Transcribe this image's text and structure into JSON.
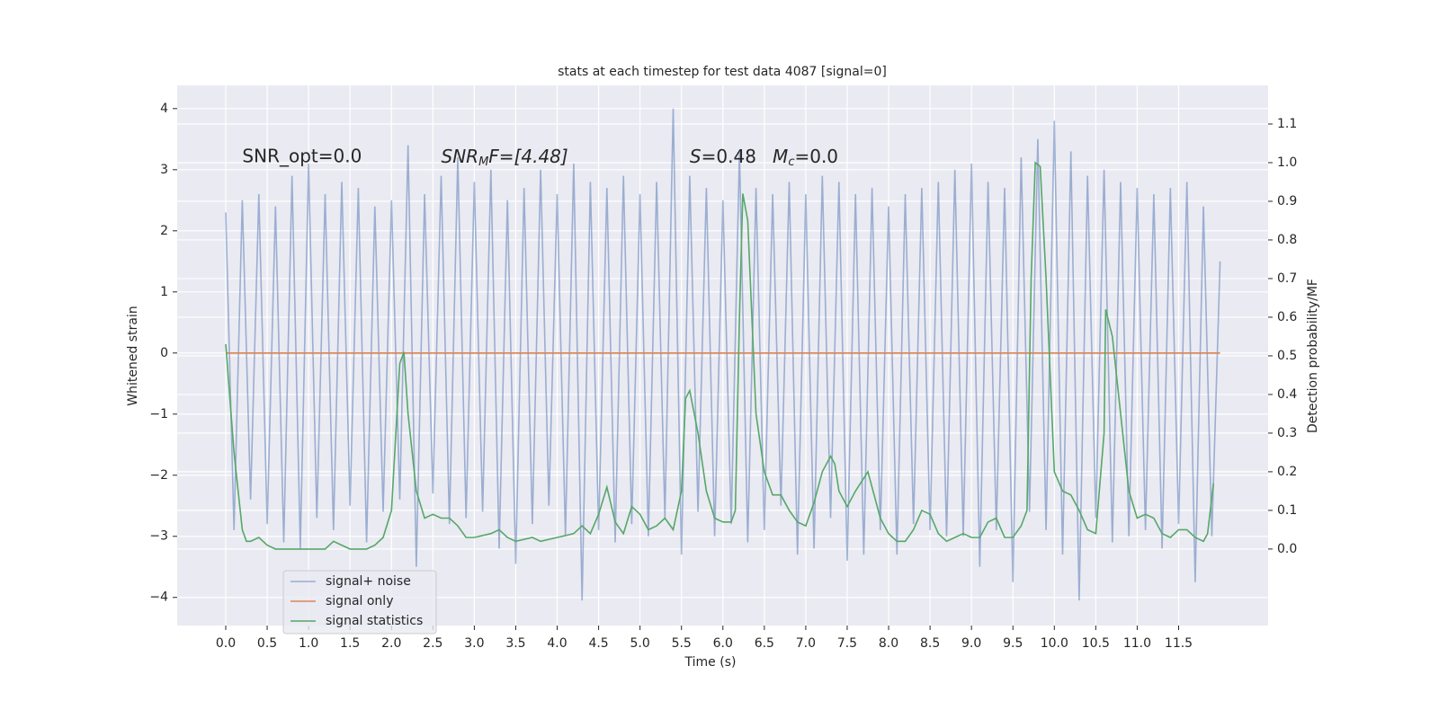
{
  "chart_data": {
    "type": "line",
    "title": "stats at each timestep for test data 4087 [signal=0]",
    "xlabel": "Time (s)",
    "ylabel": "Whitened strain",
    "y2label": "Detection probability/MF",
    "annotations": [
      {
        "text": "SNR_opt=0.0",
        "x": 0.2,
        "y": 3.2
      },
      {
        "parts": [
          "SNR",
          "M",
          "F=[4.48]"
        ],
        "x": 2.6,
        "y": 3.2
      },
      {
        "parts": [
          "S",
          "=0.48"
        ],
        "x": 5.6,
        "y": 3.2
      },
      {
        "parts": [
          "M",
          "c",
          "=0.0"
        ],
        "x": 6.6,
        "y": 3.2
      }
    ],
    "xlim": [
      -0.586,
      12.58
    ],
    "ylim": [
      -4.46,
      4.38
    ],
    "y2lim": [
      -0.198,
      1.2
    ],
    "xticks": [
      {
        "value": 0,
        "label": "0.0"
      },
      {
        "value": 0.5,
        "label": "0.5"
      },
      {
        "value": 1,
        "label": "1.0"
      },
      {
        "value": 1.5,
        "label": "1.5"
      },
      {
        "value": 2,
        "label": "2.0"
      },
      {
        "value": 2.5,
        "label": "2.5"
      },
      {
        "value": 3,
        "label": "3.0"
      },
      {
        "value": 3.5,
        "label": "3.5"
      },
      {
        "value": 4,
        "label": "4.0"
      },
      {
        "value": 4.5,
        "label": "4.5"
      },
      {
        "value": 5,
        "label": "5.0"
      },
      {
        "value": 5.5,
        "label": "5.5"
      },
      {
        "value": 6,
        "label": "6.0"
      },
      {
        "value": 6.5,
        "label": "6.5"
      },
      {
        "value": 7,
        "label": "7.0"
      },
      {
        "value": 7.5,
        "label": "7.5"
      },
      {
        "value": 8,
        "label": "8.0"
      },
      {
        "value": 8.5,
        "label": "8.5"
      },
      {
        "value": 9,
        "label": "9.0"
      },
      {
        "value": 9.5,
        "label": "9.5"
      },
      {
        "value": 10,
        "label": "10.0"
      },
      {
        "value": 10.5,
        "label": "10.5"
      },
      {
        "value": 11,
        "label": "11.0"
      },
      {
        "value": 11.5,
        "label": "11.5"
      }
    ],
    "yticks": [
      {
        "value": -4,
        "label": "−4"
      },
      {
        "value": -3,
        "label": "−3"
      },
      {
        "value": -2,
        "label": "−2"
      },
      {
        "value": -1,
        "label": "−1"
      },
      0,
      1,
      2,
      3,
      4
    ],
    "y2ticks": [
      {
        "value": 0,
        "label": "0.0"
      },
      {
        "value": 0.1,
        "label": "0.1"
      },
      {
        "value": 0.2,
        "label": "0.2"
      },
      {
        "value": 0.3,
        "label": "0.3"
      },
      {
        "value": 0.4,
        "label": "0.4"
      },
      {
        "value": 0.5,
        "label": "0.5"
      },
      {
        "value": 0.6,
        "label": "0.6"
      },
      {
        "value": 0.7,
        "label": "0.7"
      },
      {
        "value": 0.8,
        "label": "0.8"
      },
      {
        "value": 0.9,
        "label": "0.9"
      },
      {
        "value": 1,
        "label": "1.0"
      },
      {
        "value": 1.1,
        "label": "1.1"
      }
    ],
    "grid": true,
    "legend": "lower left",
    "series": [
      {
        "name": "signal+ noise",
        "color": "#4c72b0",
        "opacity": 0.5,
        "x": [
          0,
          0.1,
          0.2,
          0.3,
          0.4,
          0.5,
          0.6,
          0.7,
          0.8,
          0.9,
          1,
          1.1,
          1.2,
          1.3,
          1.4,
          1.5,
          1.6,
          1.7,
          1.8,
          1.9,
          2,
          2.1,
          2.2,
          2.3,
          2.4,
          2.5,
          2.6,
          2.7,
          2.8,
          2.9,
          3,
          3.1,
          3.2,
          3.3,
          3.4,
          3.5,
          3.6,
          3.7,
          3.8,
          3.9,
          4,
          4.1,
          4.2,
          4.3,
          4.4,
          4.5,
          4.6,
          4.7,
          4.8,
          4.9,
          5,
          5.1,
          5.2,
          5.3,
          5.4,
          5.5,
          5.6,
          5.7,
          5.8,
          5.9,
          6,
          6.1,
          6.2,
          6.3,
          6.4,
          6.5,
          6.6,
          6.7,
          6.8,
          6.9,
          7,
          7.1,
          7.2,
          7.3,
          7.4,
          7.5,
          7.6,
          7.7,
          7.8,
          7.9,
          8,
          8.1,
          8.2,
          8.3,
          8.4,
          8.5,
          8.6,
          8.7,
          8.8,
          8.9,
          9,
          9.1,
          9.2,
          9.3,
          9.4,
          9.5,
          9.6,
          9.7,
          9.8,
          9.9,
          10,
          10.1,
          10.2,
          10.3,
          10.4,
          10.5,
          10.6,
          10.7,
          10.8,
          10.9,
          11,
          11.1,
          11.2,
          11.3,
          11.4,
          11.5,
          11.6,
          11.7,
          11.8,
          11.9,
          12
        ],
        "values": [
          2.3,
          -2.9,
          2.5,
          -2.4,
          2.6,
          -2.8,
          2.4,
          -3.1,
          2.9,
          -3.2,
          3.1,
          -2.7,
          2.6,
          -2.9,
          2.8,
          -2.5,
          2.7,
          -3.1,
          2.4,
          -2.6,
          2.5,
          -2.4,
          3.4,
          -3.5,
          2.6,
          -2.3,
          2.9,
          -2.8,
          3.2,
          -2.7,
          2.8,
          -2.6,
          3.0,
          -3.2,
          2.5,
          -3.45,
          2.7,
          -2.8,
          3.0,
          -2.5,
          2.6,
          -3.0,
          3.1,
          -4.05,
          2.8,
          -2.9,
          2.7,
          -3.1,
          2.9,
          -2.8,
          2.6,
          -3.0,
          2.8,
          -2.7,
          4.0,
          -3.3,
          2.9,
          -2.6,
          2.7,
          -3.0,
          2.5,
          -2.8,
          3.3,
          -3.1,
          2.7,
          -2.9,
          2.6,
          -2.5,
          2.8,
          -3.3,
          2.6,
          -3.2,
          2.9,
          -2.7,
          2.8,
          -3.4,
          2.6,
          -3.3,
          2.7,
          -2.9,
          2.4,
          -3.3,
          2.6,
          -2.8,
          2.7,
          -2.9,
          2.8,
          -3.0,
          3.0,
          -3.0,
          3.1,
          -3.5,
          2.8,
          -2.9,
          2.7,
          -3.75,
          3.2,
          -2.6,
          3.5,
          -2.9,
          3.8,
          -3.3,
          3.3,
          -4.05,
          2.9,
          -2.7,
          3.0,
          -3.1,
          2.8,
          -3.0,
          2.7,
          -2.9,
          2.6,
          -3.2,
          2.7,
          -2.8,
          2.8,
          -3.75,
          2.4,
          -3.0,
          1.5
        ]
      },
      {
        "name": "signal only",
        "color": "#dd8452",
        "x": [
          0,
          12
        ],
        "values": [
          0,
          0
        ]
      },
      {
        "name": "signal statistics",
        "color": "#55a868",
        "axis": "y2",
        "x": [
          0,
          0.1,
          0.2,
          0.25,
          0.3,
          0.4,
          0.5,
          0.6,
          0.8,
          1.0,
          1.2,
          1.3,
          1.4,
          1.5,
          1.7,
          1.8,
          1.9,
          2.0,
          2.1,
          2.15,
          2.2,
          2.3,
          2.4,
          2.5,
          2.6,
          2.7,
          2.8,
          2.9,
          3.0,
          3.2,
          3.3,
          3.4,
          3.5,
          3.7,
          3.8,
          4.0,
          4.2,
          4.3,
          4.4,
          4.5,
          4.6,
          4.7,
          4.8,
          4.9,
          5.0,
          5.1,
          5.2,
          5.3,
          5.4,
          5.5,
          5.55,
          5.6,
          5.7,
          5.8,
          5.9,
          6.0,
          6.1,
          6.15,
          6.2,
          6.24,
          6.3,
          6.4,
          6.5,
          6.6,
          6.7,
          6.8,
          6.9,
          7.0,
          7.1,
          7.2,
          7.3,
          7.35,
          7.4,
          7.5,
          7.6,
          7.75,
          7.8,
          7.9,
          8.0,
          8.1,
          8.2,
          8.3,
          8.4,
          8.5,
          8.6,
          8.7,
          8.8,
          8.9,
          9.0,
          9.1,
          9.2,
          9.3,
          9.4,
          9.5,
          9.6,
          9.67,
          9.72,
          9.77,
          9.83,
          9.9,
          10.0,
          10.1,
          10.2,
          10.3,
          10.4,
          10.5,
          10.6,
          10.62,
          10.7,
          10.8,
          10.9,
          11.0,
          11.1,
          11.2,
          11.3,
          11.4,
          11.5,
          11.6,
          11.7,
          11.8,
          11.85,
          11.92
        ],
        "values": [
          0.53,
          0.25,
          0.05,
          0.02,
          0.02,
          0.03,
          0.01,
          0.0,
          0.0,
          0.0,
          0.0,
          0.02,
          0.01,
          0.0,
          0.0,
          0.01,
          0.03,
          0.1,
          0.48,
          0.51,
          0.35,
          0.15,
          0.08,
          0.09,
          0.08,
          0.08,
          0.06,
          0.03,
          0.03,
          0.04,
          0.05,
          0.03,
          0.02,
          0.03,
          0.02,
          0.03,
          0.04,
          0.06,
          0.04,
          0.09,
          0.16,
          0.07,
          0.04,
          0.11,
          0.09,
          0.05,
          0.06,
          0.08,
          0.05,
          0.15,
          0.39,
          0.41,
          0.3,
          0.15,
          0.08,
          0.07,
          0.07,
          0.1,
          0.6,
          0.92,
          0.85,
          0.35,
          0.2,
          0.14,
          0.14,
          0.1,
          0.07,
          0.06,
          0.12,
          0.2,
          0.24,
          0.22,
          0.15,
          0.11,
          0.15,
          0.2,
          0.16,
          0.08,
          0.04,
          0.02,
          0.02,
          0.05,
          0.1,
          0.09,
          0.04,
          0.02,
          0.03,
          0.04,
          0.03,
          0.03,
          0.07,
          0.08,
          0.03,
          0.03,
          0.06,
          0.1,
          0.7,
          1.0,
          0.99,
          0.7,
          0.2,
          0.15,
          0.14,
          0.1,
          0.05,
          0.04,
          0.3,
          0.62,
          0.55,
          0.35,
          0.15,
          0.08,
          0.09,
          0.08,
          0.04,
          0.03,
          0.05,
          0.05,
          0.03,
          0.02,
          0.04,
          0.17
        ]
      }
    ]
  }
}
